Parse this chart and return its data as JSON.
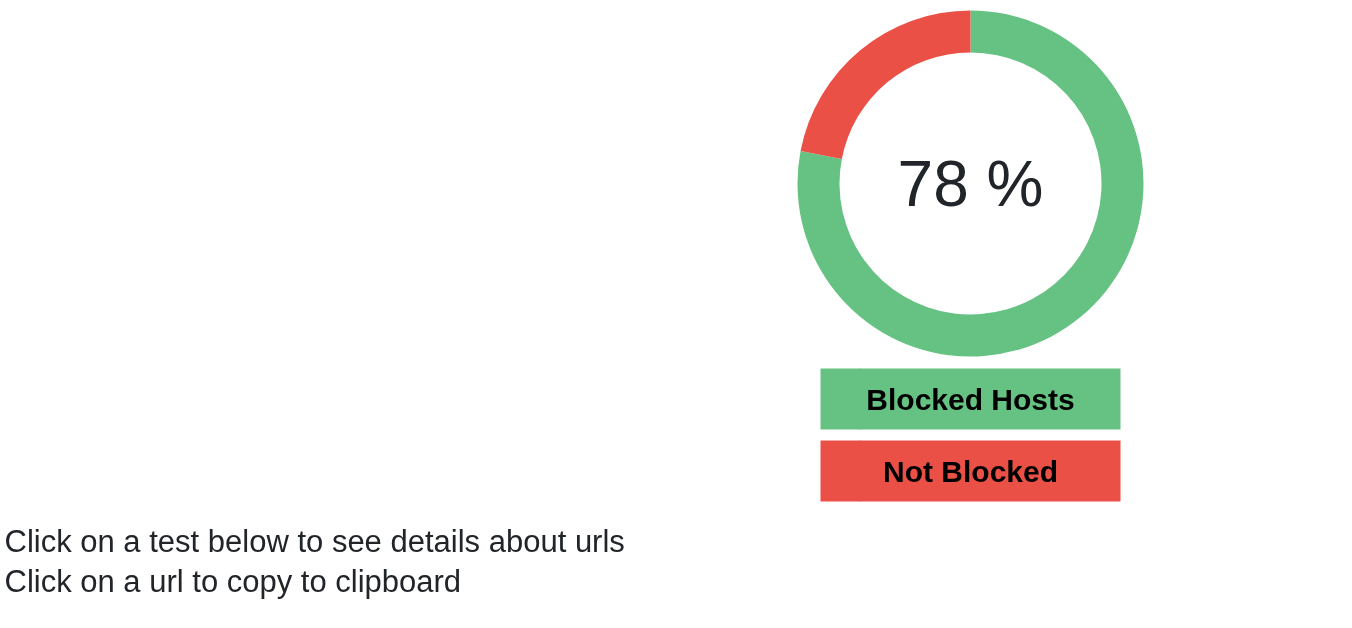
{
  "chart_data": {
    "type": "donut",
    "categories": [
      "Blocked Hosts",
      "Not Blocked"
    ],
    "values": [
      78,
      22
    ],
    "colors": [
      "#66c283",
      "#eb5046"
    ],
    "legend": "bottom",
    "annotations": [
      "78 %",
      "Click on a test below to see details about urls",
      "Click on a url to copy to clipboard"
    ]
  }
}
